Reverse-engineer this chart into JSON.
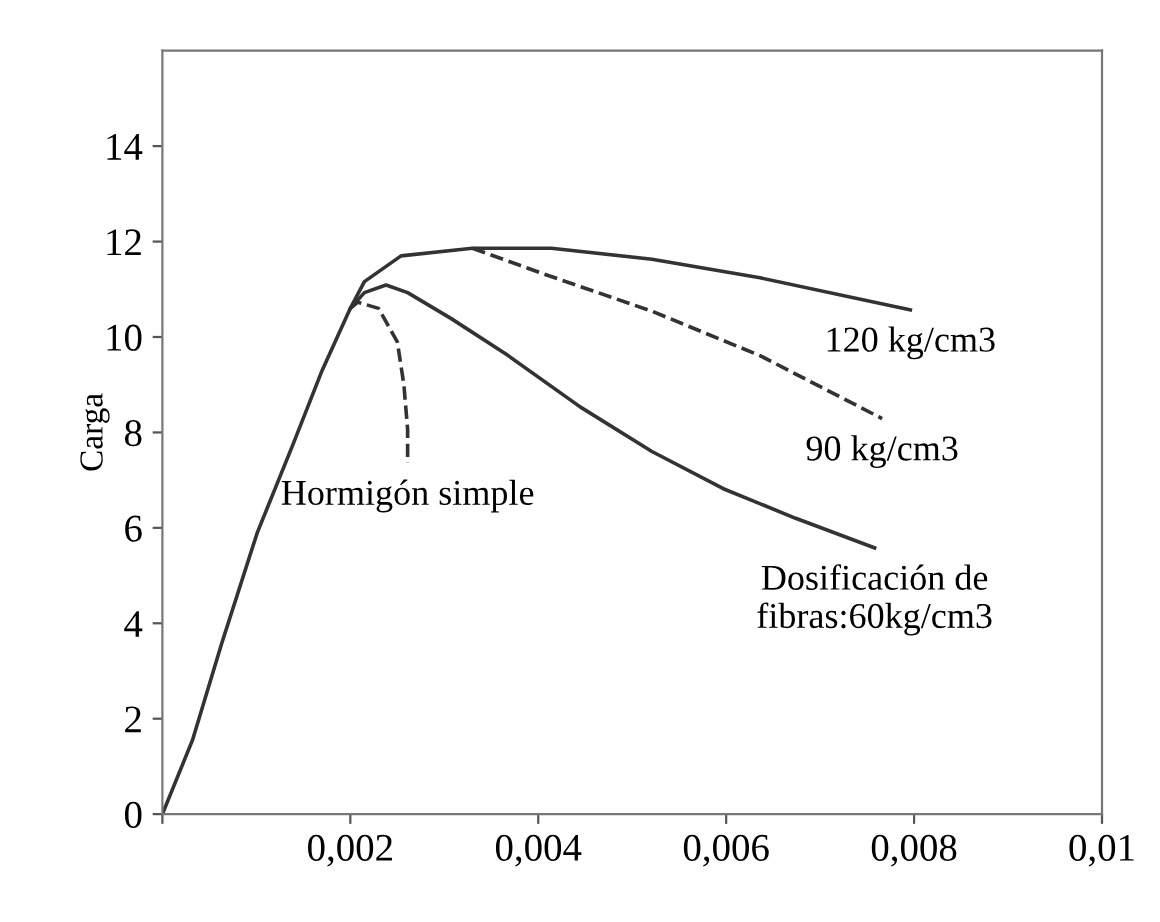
{
  "chart_data": {
    "type": "line",
    "ylabel": "Carga",
    "xlim": [
      0,
      0.01
    ],
    "ylim": [
      0,
      16
    ],
    "xticks": [
      {
        "value": 0,
        "label": null
      },
      {
        "value": 0.002,
        "label": "0,002"
      },
      {
        "value": 0.004,
        "label": "0,004"
      },
      {
        "value": 0.006,
        "label": "0,006"
      },
      {
        "value": 0.008,
        "label": "0,008"
      },
      {
        "value": 0.01,
        "label": "0,01"
      }
    ],
    "yticks": [
      0,
      2,
      4,
      6,
      8,
      10,
      12,
      14
    ],
    "grid": false,
    "marker": "none",
    "series": [
      {
        "name": "Dosificación de\nfibras:60kg/cm3",
        "color": "#333333",
        "line_style": "solid",
        "x": [
          0,
          0.00032,
          0.00063,
          0.00101,
          0.00139,
          0.0017,
          0.002,
          0.00215,
          0.00238,
          0.00261,
          0.00307,
          0.00368,
          0.00445,
          0.00521,
          0.00597,
          0.00674,
          0.00758
        ],
        "values": [
          0,
          1.55,
          3.57,
          5.9,
          7.75,
          9.3,
          10.6,
          10.93,
          11.09,
          10.93,
          10.39,
          9.61,
          8.53,
          7.6,
          6.82,
          6.2,
          5.58
        ]
      },
      {
        "name": "120 kg/cm3",
        "color": "#333333",
        "line_style": "solid",
        "x": [
          0.002,
          0.00215,
          0.00254,
          0.0033,
          0.00414,
          0.00521,
          0.00636,
          0.00796
        ],
        "values": [
          10.6,
          11.16,
          11.7,
          11.86,
          11.86,
          11.63,
          11.24,
          10.57
        ]
      },
      {
        "name": "90 kg/cm3",
        "color": "#333333",
        "line_style": "dashed",
        "x": [
          0.0033,
          0.00406,
          0.00521,
          0.00636,
          0.00766
        ],
        "values": [
          11.86,
          11.32,
          10.54,
          9.61,
          8.29
        ]
      },
      {
        "name": "Hormigón simple",
        "color": "#333333",
        "line_style": "dashed",
        "x": [
          0.002,
          0.00208,
          0.0023,
          0.0025,
          0.00257,
          0.00261,
          0.00261
        ],
        "values": [
          10.6,
          10.73,
          10.6,
          9.9,
          9.0,
          8.06,
          7.36
        ]
      }
    ]
  }
}
